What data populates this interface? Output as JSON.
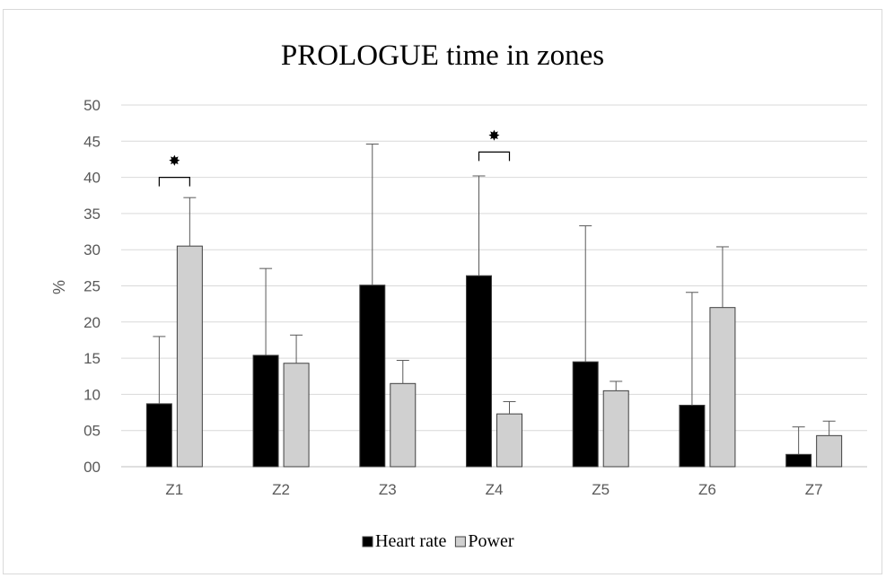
{
  "chart_data": {
    "type": "bar",
    "title": "PROLOGUE time in zones",
    "xlabel": "",
    "ylabel": "%",
    "categories": [
      "Z1",
      "Z2",
      "Z3",
      "Z4",
      "Z5",
      "Z6",
      "Z7"
    ],
    "ylim": [
      0,
      50
    ],
    "ytick_labels": [
      "00",
      "05",
      "10",
      "15",
      "20",
      "25",
      "30",
      "35",
      "40",
      "45",
      "50"
    ],
    "series": [
      {
        "name": "Heart rate",
        "color": "#000000",
        "values": [
          8.7,
          15.4,
          25.1,
          26.4,
          14.5,
          8.5,
          1.7
        ],
        "error_upper": [
          18.0,
          27.4,
          44.6,
          40.2,
          33.3,
          24.1,
          5.5
        ]
      },
      {
        "name": "Power",
        "color": "#d0d0d0",
        "values": [
          30.5,
          14.3,
          11.5,
          7.3,
          10.5,
          22.0,
          4.3
        ],
        "error_upper": [
          37.2,
          18.2,
          14.7,
          9.0,
          11.8,
          30.4,
          6.3
        ]
      }
    ],
    "significance": [
      {
        "category": "Z1",
        "marker": "✸",
        "bracket_level": 40
      },
      {
        "category": "Z4",
        "marker": "✸",
        "bracket_level": 43.5
      }
    ],
    "grid": true,
    "legend_position": "bottom"
  }
}
